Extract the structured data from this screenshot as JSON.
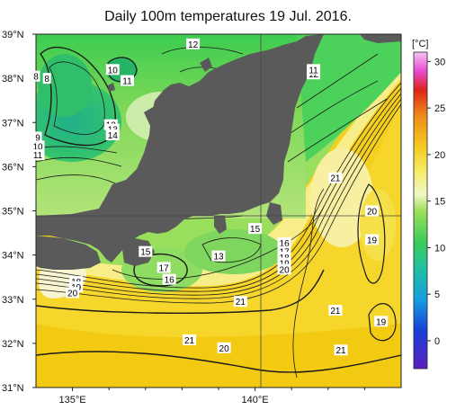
{
  "title": "Daily 100m temperatures 19 Jul. 2016.",
  "map": {
    "lat_range": [
      31,
      39
    ],
    "lon_range": [
      134,
      144
    ],
    "lat_labels": [
      "39°N",
      "38°N",
      "37°N",
      "36°N",
      "35°N",
      "34°N",
      "33°N",
      "32°N",
      "31°N"
    ],
    "lon_labels": [
      "135°E",
      "140°E"
    ]
  },
  "colorbar": {
    "unit": "[°C]",
    "range": [
      -3,
      31
    ],
    "ticks": [
      "30",
      "25",
      "20",
      "15",
      "10",
      "5",
      "0"
    ]
  },
  "contour_labels": [
    {
      "text": "12",
      "lon": 141.6,
      "lat": 38.1
    },
    {
      "text": "12",
      "lon": 138.3,
      "lat": 38.78
    },
    {
      "text": "10",
      "lon": 136.1,
      "lat": 38.2
    },
    {
      "text": "11",
      "lon": 136.5,
      "lat": 37.95
    },
    {
      "text": "8",
      "lon": 134.0,
      "lat": 38.05
    },
    {
      "text": "8",
      "lon": 134.3,
      "lat": 38.0
    },
    {
      "text": "12",
      "lon": 136.05,
      "lat": 36.95
    },
    {
      "text": "13",
      "lon": 136.1,
      "lat": 36.85
    },
    {
      "text": "14",
      "lon": 136.1,
      "lat": 36.72
    },
    {
      "text": "9",
      "lon": 134.05,
      "lat": 36.67
    },
    {
      "text": "10",
      "lon": 134.05,
      "lat": 36.47
    },
    {
      "text": "11",
      "lon": 134.05,
      "lat": 36.27
    },
    {
      "text": "11",
      "lon": 141.6,
      "lat": 38.2
    },
    {
      "text": "21",
      "lon": 142.2,
      "lat": 35.75
    },
    {
      "text": "20",
      "lon": 143.2,
      "lat": 35.0
    },
    {
      "text": "19",
      "lon": 143.2,
      "lat": 34.35
    },
    {
      "text": "15",
      "lon": 140.0,
      "lat": 34.6
    },
    {
      "text": "16",
      "lon": 140.8,
      "lat": 34.28
    },
    {
      "text": "17",
      "lon": 140.8,
      "lat": 34.08
    },
    {
      "text": "18",
      "lon": 140.8,
      "lat": 33.95
    },
    {
      "text": "19",
      "lon": 140.8,
      "lat": 33.82
    },
    {
      "text": "20",
      "lon": 140.8,
      "lat": 33.68
    },
    {
      "text": "15",
      "lon": 137.0,
      "lat": 34.08
    },
    {
      "text": "17",
      "lon": 137.5,
      "lat": 33.72
    },
    {
      "text": "16",
      "lon": 137.65,
      "lat": 33.45
    },
    {
      "text": "13",
      "lon": 139.0,
      "lat": 33.98
    },
    {
      "text": "18",
      "lon": 135.1,
      "lat": 33.4
    },
    {
      "text": "19",
      "lon": 135.1,
      "lat": 33.28
    },
    {
      "text": "20",
      "lon": 135.0,
      "lat": 33.15
    },
    {
      "text": "21",
      "lon": 139.6,
      "lat": 32.95
    },
    {
      "text": "21",
      "lon": 142.2,
      "lat": 32.75
    },
    {
      "text": "19",
      "lon": 143.45,
      "lat": 32.5
    },
    {
      "text": "21",
      "lon": 138.2,
      "lat": 32.08
    },
    {
      "text": "20",
      "lon": 139.15,
      "lat": 31.9
    },
    {
      "text": "21",
      "lon": 142.35,
      "lat": 31.85
    }
  ]
}
